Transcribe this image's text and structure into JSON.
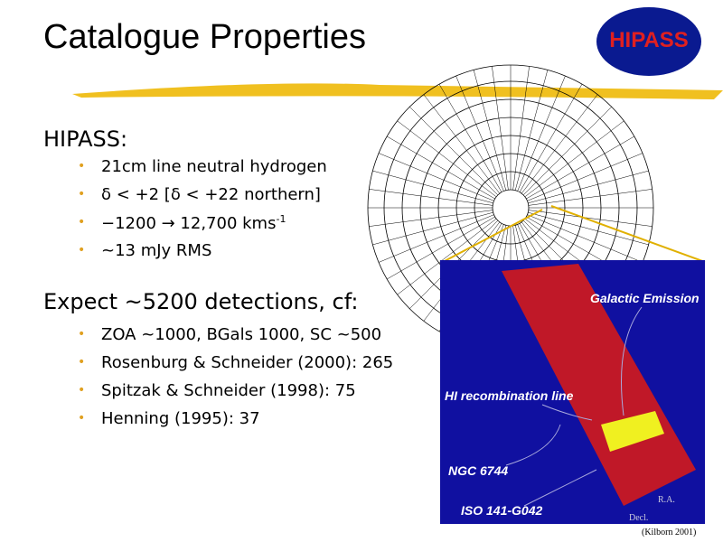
{
  "header": {
    "title": "Catalogue Properties",
    "logo": "HIPASS"
  },
  "sections": [
    {
      "heading": "HIPASS:",
      "bullets": [
        {
          "text": "21cm line neutral hydrogen"
        },
        {
          "text": "δ < +2  [δ < +22 northern]"
        },
        {
          "text": "−1200 → 12,700 kms",
          "sup": "-1"
        },
        {
          "text": "~13 mJy RMS"
        }
      ]
    },
    {
      "heading": "Expect ~5200 detections, cf:",
      "bullets": [
        {
          "text": "ZOA ~1000, BGals 1000, SC ~500"
        },
        {
          "text": "Rosenburg & Schneider (2000): 265"
        },
        {
          "text": "Spitzak & Schneider (1998): 75"
        },
        {
          "text": "Henning (1995): 37"
        }
      ]
    }
  ],
  "figure": {
    "labels": [
      "Galactic Emission",
      "HI recombination line",
      "NGC 6744",
      "ISO 141-G042",
      "R.A.",
      "Decl."
    ],
    "credit": "(Kilborn 2001)"
  }
}
